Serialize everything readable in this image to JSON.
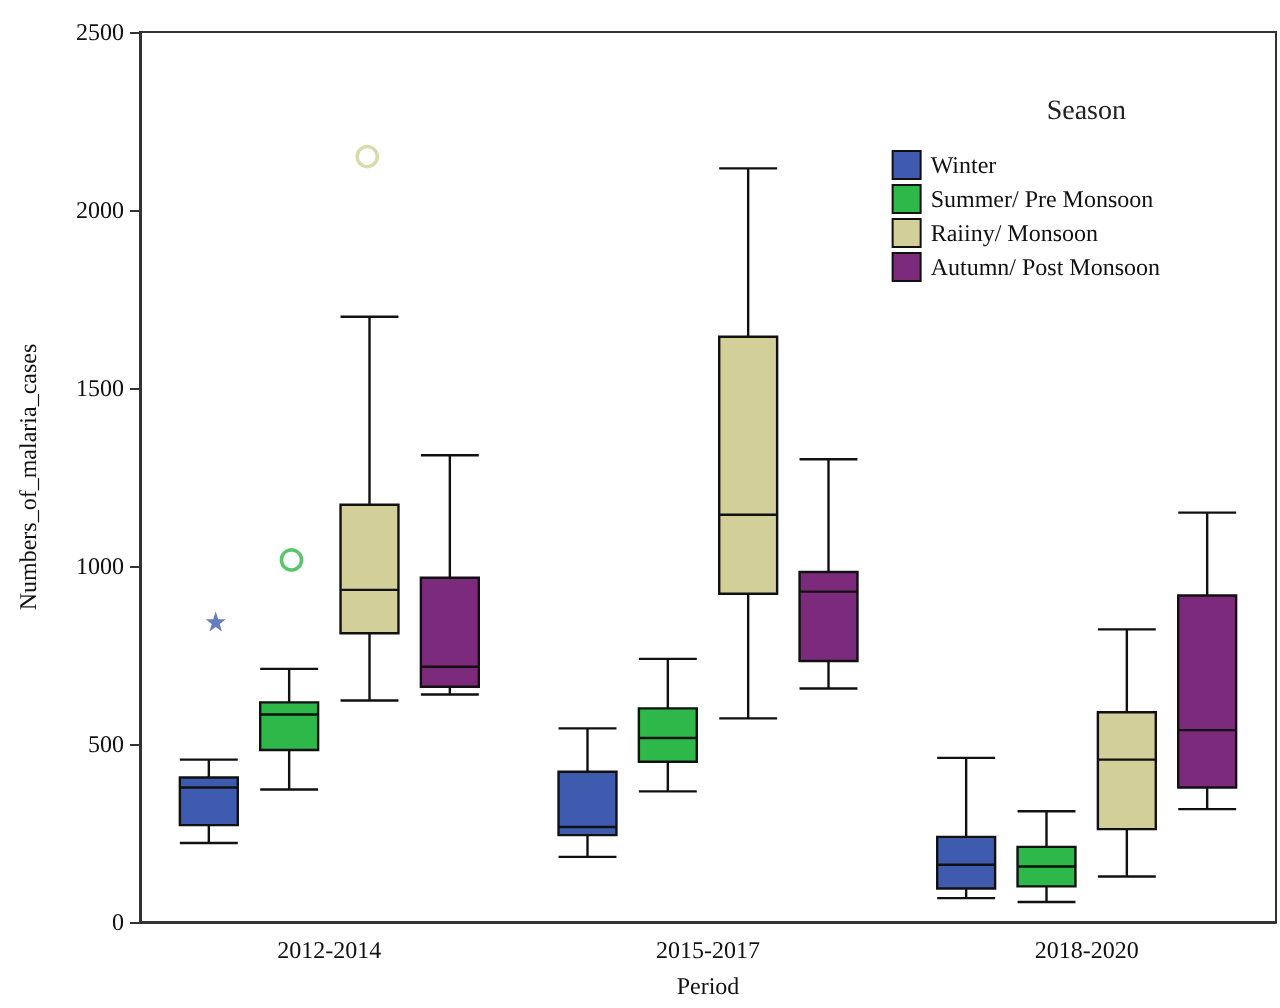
{
  "chart_data": {
    "type": "box",
    "xlabel": "Period",
    "ylabel": "Numbers_of_malaria_cases",
    "legend_title": "Season",
    "categories": [
      "2012-2014",
      "2015-2017",
      "2018-2020"
    ],
    "ylim": [
      0,
      2500
    ],
    "yticks": [
      0,
      500,
      1000,
      1500,
      2000,
      2500
    ],
    "grid": false,
    "legend": "top right",
    "series": [
      {
        "name": "Winter",
        "color": "#3f5bb0",
        "marker": "star",
        "boxes": [
          {
            "low": 222,
            "q1": 272,
            "median": 378,
            "q3": 406,
            "high": 456,
            "outliers": [
              844
            ]
          },
          {
            "low": 183,
            "q1": 244,
            "median": 267,
            "q3": 422,
            "high": 544
          },
          {
            "low": 67,
            "q1": 94,
            "median": 161,
            "q3": 239,
            "high": 461
          }
        ]
      },
      {
        "name": "Summer/ Pre Monsoon",
        "color": "#2fb84a",
        "marker": "circle",
        "boxes": [
          {
            "low": 372,
            "q1": 483,
            "median": 583,
            "q3": 617,
            "high": 711,
            "outliers": [
              1017
            ]
          },
          {
            "low": 367,
            "q1": 450,
            "median": 517,
            "q3": 600,
            "high": 739
          },
          {
            "low": 56,
            "q1": 100,
            "median": 156,
            "q3": 211,
            "high": 311
          }
        ]
      },
      {
        "name": "Raiiny/ Monsoon",
        "color": "#d3cf98",
        "marker": "circle",
        "boxes": [
          {
            "low": 622,
            "q1": 811,
            "median": 933,
            "q3": 1172,
            "high": 1700,
            "outliers": [
              2150
            ]
          },
          {
            "low": 572,
            "q1": 922,
            "median": 1144,
            "q3": 1644,
            "high": 2117
          },
          {
            "low": 128,
            "q1": 261,
            "median": 456,
            "q3": 589,
            "high": 822
          }
        ]
      },
      {
        "name": "Autumn/ Post Monsoon",
        "color": "#7c2a7c",
        "marker": "circle",
        "boxes": [
          {
            "low": 639,
            "q1": 661,
            "median": 717,
            "q3": 967,
            "high": 1311
          },
          {
            "low": 656,
            "q1": 733,
            "median": 928,
            "q3": 983,
            "high": 1300
          },
          {
            "low": 317,
            "q1": 378,
            "median": 539,
            "q3": 917,
            "high": 1150
          }
        ]
      }
    ]
  }
}
